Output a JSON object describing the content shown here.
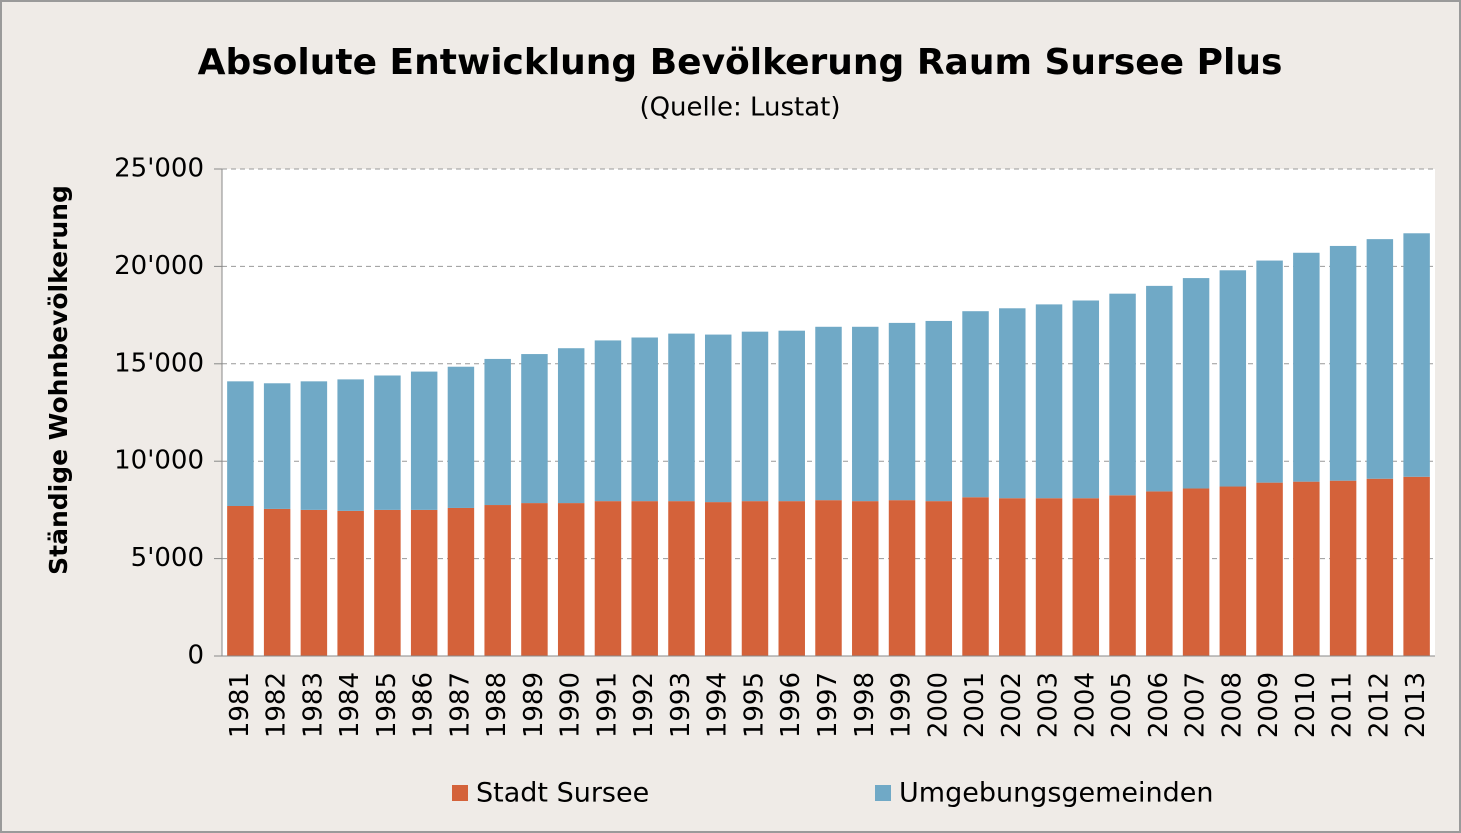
{
  "chart_data": {
    "type": "stacked_bar",
    "title": "Absolute Entwicklung Bevölkerung Raum Sursee Plus",
    "subtitle": "(Quelle: Lustat)",
    "ylabel": "Ständige Wohnbevölkerung",
    "categories": [
      "1981",
      "1982",
      "1983",
      "1984",
      "1985",
      "1986",
      "1987",
      "1988",
      "1989",
      "1990",
      "1991",
      "1992",
      "1993",
      "1994",
      "1995",
      "1996",
      "1997",
      "1998",
      "1999",
      "2000",
      "2001",
      "2002",
      "2003",
      "2004",
      "2005",
      "2006",
      "2007",
      "2008",
      "2009",
      "2010",
      "2011",
      "2012",
      "2013"
    ],
    "series": [
      {
        "name": "Stadt Sursee",
        "color": "#d4623a",
        "values": [
          7700,
          7550,
          7500,
          7450,
          7500,
          7500,
          7600,
          7750,
          7850,
          7850,
          7950,
          7950,
          7950,
          7900,
          7950,
          7950,
          8000,
          7950,
          8000,
          7950,
          8150,
          8100,
          8100,
          8100,
          8250,
          8450,
          8600,
          8700,
          8900,
          8950,
          9000,
          9100,
          9200
        ]
      },
      {
        "name": "Umgebungsgemeinden",
        "color": "#70a9c6",
        "values": [
          6400,
          6450,
          6600,
          6750,
          6900,
          7100,
          7250,
          7500,
          7650,
          7950,
          8250,
          8400,
          8600,
          8600,
          8700,
          8750,
          8900,
          8950,
          9100,
          9250,
          9550,
          9750,
          9950,
          10150,
          10350,
          10550,
          10800,
          11100,
          11400,
          11750,
          12050,
          12300,
          12500
        ]
      }
    ],
    "ylim": [
      0,
      25000
    ],
    "yticks": [
      0,
      {
        "value": 5000,
        "label": "5'000"
      },
      {
        "value": 10000,
        "label": "10'000"
      },
      {
        "value": 15000,
        "label": "15'000"
      },
      {
        "value": 20000,
        "label": "20'000"
      },
      {
        "value": 25000,
        "label": "25'000"
      }
    ],
    "grid": true
  }
}
